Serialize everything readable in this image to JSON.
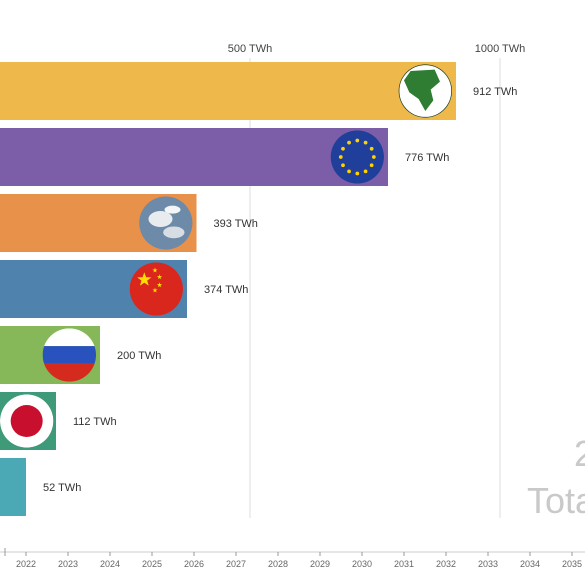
{
  "chart_data": {
    "type": "bar",
    "orientation": "horizontal",
    "unit": "TWh",
    "xlim": [
      0,
      1000
    ],
    "grid": true,
    "x_ticks": [
      {
        "value": 500,
        "label": "500 TWh"
      },
      {
        "value": 1000,
        "label": "1000 TWh"
      }
    ],
    "bars": [
      {
        "value": 912,
        "label": "912 TWh",
        "color": "#efb84a",
        "icon": "north-america-globe-icon"
      },
      {
        "value": 776,
        "label": "776 TWh",
        "color": "#7b5ea7",
        "icon": "eu-flag-icon"
      },
      {
        "value": 393,
        "label": "393 TWh",
        "color": "#e8914a",
        "icon": "earth-globe-icon"
      },
      {
        "value": 374,
        "label": "374 TWh",
        "color": "#4f82ad",
        "icon": "china-flag-icon"
      },
      {
        "value": 200,
        "label": "200 TWh",
        "color": "#86b85a",
        "icon": "russia-flag-icon"
      },
      {
        "value": 112,
        "label": "112 TWh",
        "color": "#3e9a78",
        "icon": "japan-flag-icon"
      },
      {
        "value": 52,
        "label": "52 TWh",
        "color": "#4aa9b5",
        "icon": ""
      }
    ],
    "timeline": {
      "years": [
        "2022",
        "2023",
        "2024",
        "2025",
        "2026",
        "2027",
        "2028",
        "2029",
        "2030",
        "2031",
        "2032",
        "2033",
        "2034",
        "2035"
      ]
    },
    "watermark": "Tota",
    "watermark_partial": "2"
  }
}
